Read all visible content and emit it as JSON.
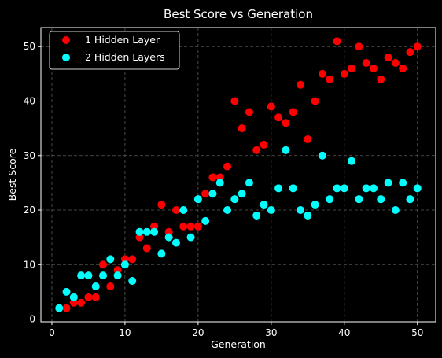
{
  "chart_data": {
    "type": "scatter",
    "title": "Best Score vs Generation",
    "xlabel": "Generation",
    "ylabel": "Best Score",
    "xlim": [
      -1.5,
      52.5
    ],
    "ylim": [
      -0.5,
      53.5
    ],
    "xticks": [
      0,
      10,
      20,
      30,
      40,
      50
    ],
    "yticks": [
      0,
      10,
      20,
      30,
      40,
      50
    ],
    "grid": true,
    "legend_position": "top-left",
    "series": [
      {
        "name": "1 Hidden Layer",
        "color": "#ff0000",
        "x": [
          2,
          3,
          4,
          5,
          6,
          7,
          8,
          9,
          10,
          11,
          12,
          13,
          14,
          15,
          16,
          17,
          18,
          19,
          20,
          21,
          22,
          23,
          24,
          25,
          26,
          27,
          28,
          29,
          30,
          31,
          32,
          33,
          34,
          35,
          36,
          37,
          38,
          39,
          40,
          41,
          42,
          43,
          44,
          45,
          46,
          47,
          48,
          49,
          50
        ],
        "y": [
          2,
          3,
          3,
          4,
          4,
          10,
          6,
          9,
          11,
          11,
          15,
          13,
          17,
          21,
          16,
          20,
          17,
          17,
          17,
          23,
          26,
          26,
          28,
          40,
          35,
          38,
          31,
          32,
          39,
          37,
          36,
          38,
          43,
          33,
          40,
          45,
          44,
          51,
          45,
          46,
          50,
          47,
          46,
          44,
          48,
          47,
          46,
          49,
          50
        ]
      },
      {
        "name": "2 Hidden Layers",
        "color": "#00ffff",
        "x": [
          1,
          2,
          3,
          4,
          5,
          6,
          7,
          8,
          9,
          10,
          11,
          12,
          13,
          14,
          15,
          16,
          17,
          18,
          19,
          20,
          21,
          22,
          23,
          24,
          25,
          26,
          27,
          28,
          29,
          30,
          31,
          32,
          33,
          34,
          35,
          36,
          37,
          38,
          39,
          40,
          41,
          42,
          43,
          44,
          45,
          46,
          47,
          48,
          49,
          50
        ],
        "y": [
          2,
          5,
          4,
          8,
          8,
          6,
          8,
          11,
          8,
          10,
          7,
          16,
          16,
          16,
          12,
          15,
          14,
          20,
          15,
          22,
          18,
          23,
          25,
          20,
          22,
          23,
          25,
          19,
          21,
          20,
          24,
          31,
          24,
          20,
          19,
          21,
          30,
          22,
          24,
          24,
          29,
          22,
          24,
          24,
          22,
          25,
          20,
          25,
          22,
          24
        ]
      }
    ]
  }
}
